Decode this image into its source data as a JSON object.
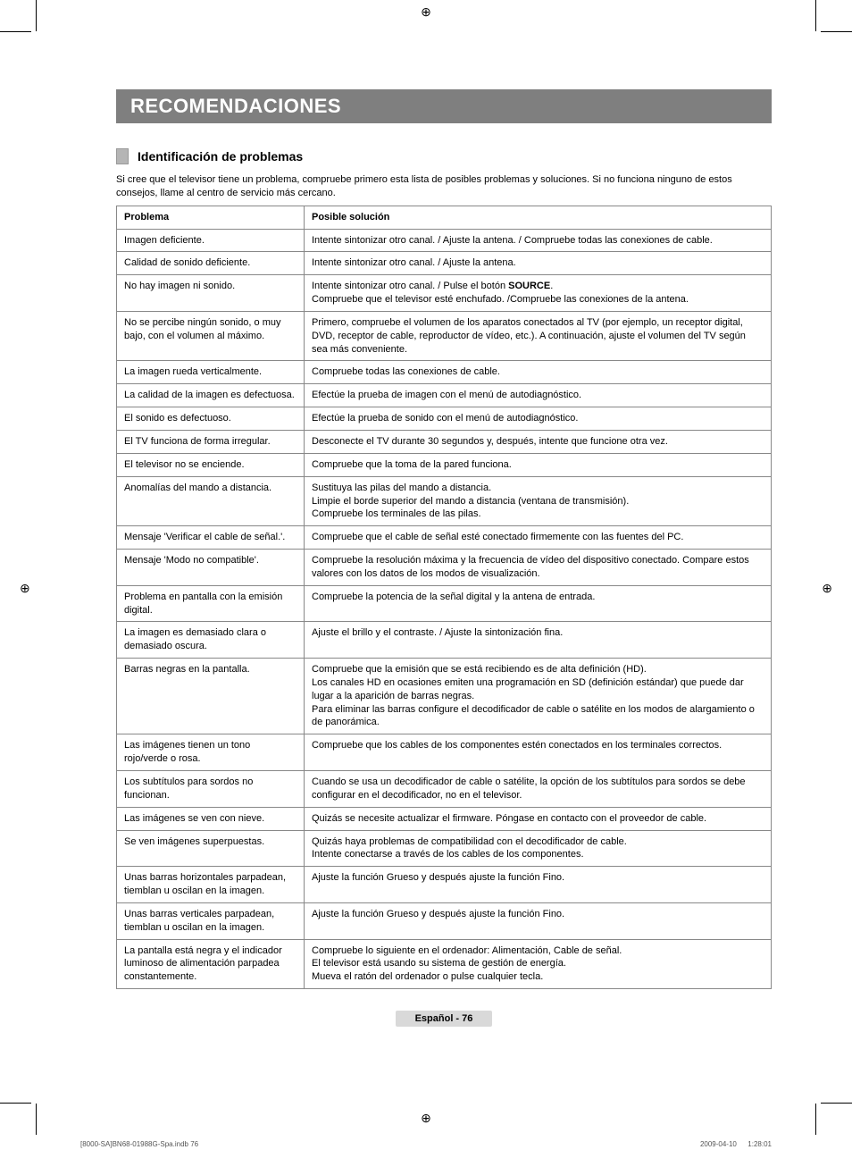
{
  "crop_marks": true,
  "title_bar": "RECOMENDACIONES",
  "section_heading": "Identificación de problemas",
  "intro": "Si cree que el televisor tiene un problema, compruebe primero esta lista de posibles problemas y soluciones. Si no funciona ninguno de estos consejos, llame al centro de servicio más cercano.",
  "table": {
    "headers": {
      "problem": "Problema",
      "solution": "Posible solución"
    },
    "rows": [
      {
        "problem": "Imagen deficiente.",
        "solution": "Intente sintonizar otro canal. / Ajuste la antena. / Compruebe todas las conexiones de cable."
      },
      {
        "problem": "Calidad de sonido deficiente.",
        "solution": "Intente sintonizar otro canal. / Ajuste la antena."
      },
      {
        "problem": "No hay imagen ni sonido.",
        "solution": "Intente sintonizar otro canal. / Pulse el botón SOURCE.\nCompruebe que el televisor esté enchufado. /Compruebe las conexiones de la antena."
      },
      {
        "problem": "No se percibe ningún sonido, o muy bajo, con el volumen al máximo.",
        "solution": "Primero, compruebe el volumen de los aparatos conectados al TV (por ejemplo, un receptor digital, DVD, receptor de cable, reproductor de vídeo, etc.). A continuación, ajuste el volumen del TV según sea más conveniente."
      },
      {
        "problem": "La imagen rueda verticalmente.",
        "solution": "Compruebe todas las conexiones de cable."
      },
      {
        "problem": "La calidad de la imagen es defectuosa.",
        "solution": "Efectúe la prueba de imagen con el menú de autodiagnóstico."
      },
      {
        "problem": "El sonido es defectuoso.",
        "solution": "Efectúe la prueba de sonido con el menú de autodiagnóstico."
      },
      {
        "problem": "El TV funciona de forma irregular.",
        "solution": "Desconecte el TV durante 30 segundos y, después, intente que funcione otra vez."
      },
      {
        "problem": "El televisor no se enciende.",
        "solution": "Compruebe que la toma de la pared funciona."
      },
      {
        "problem": "Anomalías del mando a distancia.",
        "solution": "Sustituya las pilas del mando a distancia.\nLimpie el borde superior del mando a distancia (ventana de transmisión).\nCompruebe los terminales de las pilas."
      },
      {
        "problem": "Mensaje 'Verificar el cable de señal.'.",
        "solution": "Compruebe que el cable de señal esté conectado firmemente con las fuentes del PC."
      },
      {
        "problem": "Mensaje 'Modo no compatible'.",
        "solution": "Compruebe la resolución máxima y la frecuencia de vídeo del dispositivo conectado. Compare estos valores con los datos de los modos de visualización."
      },
      {
        "problem": "Problema en pantalla con la emisión digital.",
        "solution": "Compruebe la potencia de la señal digital y la antena de entrada."
      },
      {
        "problem": "La imagen es demasiado clara o demasiado oscura.",
        "solution": "Ajuste el brillo y el contraste. / Ajuste la sintonización fina."
      },
      {
        "problem": "Barras negras en la pantalla.",
        "solution": "Compruebe que la emisión que se está recibiendo es de alta definición (HD).\nLos canales HD en ocasiones emiten una programación en SD (definición estándar) que puede dar lugar a la aparición de barras negras.\nPara eliminar las barras configure el decodificador de cable o satélite en los modos de alargamiento o de panorámica."
      },
      {
        "problem": "Las imágenes tienen un tono rojo/verde o rosa.",
        "solution": "Compruebe que los cables de los componentes estén conectados en los terminales correctos."
      },
      {
        "problem": "Los subtítulos para sordos no funcionan.",
        "solution": "Cuando se usa un decodificador de cable o satélite, la opción de los subtítulos para sordos se debe configurar en el decodificador, no en el televisor."
      },
      {
        "problem": "Las imágenes se ven con nieve.",
        "solution": "Quizás se necesite actualizar el firmware. Póngase en contacto con el proveedor de cable."
      },
      {
        "problem": "Se ven imágenes superpuestas.",
        "solution": "Quizás haya problemas de compatibilidad con el decodificador de cable.\nIntente conectarse a través de los cables de los componentes."
      },
      {
        "problem": "Unas barras horizontales parpadean, tiemblan u oscilan en la imagen.",
        "solution": "Ajuste la función Grueso y después ajuste la función Fino."
      },
      {
        "problem": "Unas barras verticales parpadean, tiemblan u oscilan en la imagen.",
        "solution": "Ajuste la función Grueso y después ajuste la función Fino."
      },
      {
        "problem": "La pantalla está negra y el indicador luminoso de alimentación parpadea constantemente.",
        "solution": "Compruebe lo siguiente en el ordenador: Alimentación, Cable de señal.\nEl televisor está usando su sistema de gestión de energía.\nMueva el ratón del ordenador o pulse cualquier tecla."
      }
    ]
  },
  "page_label": "Español - 76",
  "footer": {
    "left": "[8000-SA]BN68-01988G-Spa.indb   76",
    "right": "2009-04-10      1:28:01"
  },
  "registration_glyph": "⊕"
}
